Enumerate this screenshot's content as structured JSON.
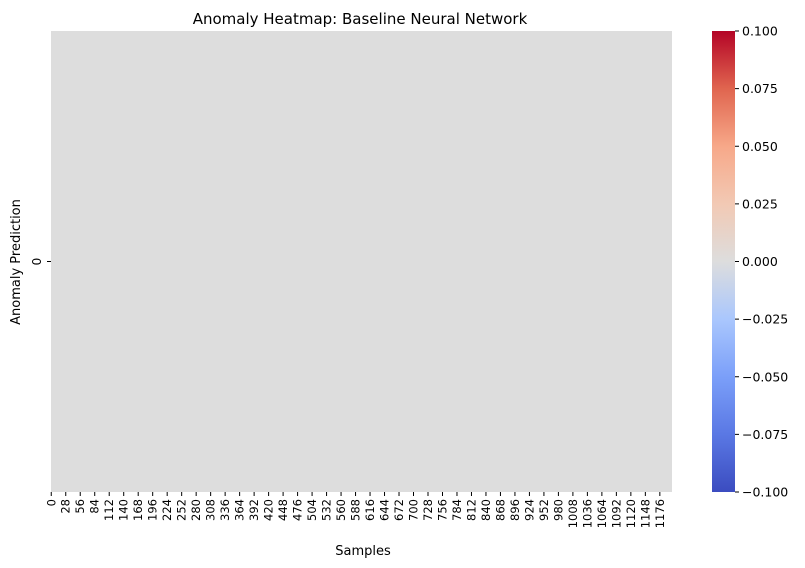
{
  "chart_data": {
    "type": "heatmap",
    "title": "Anomaly Heatmap: Baseline Neural Network",
    "xlabel": "Samples",
    "ylabel": "Anomaly Prediction",
    "x_tick_labels": [
      "0",
      "28",
      "56",
      "84",
      "112",
      "140",
      "168",
      "196",
      "224",
      "252",
      "280",
      "308",
      "336",
      "364",
      "392",
      "420",
      "448",
      "476",
      "504",
      "532",
      "560",
      "588",
      "616",
      "644",
      "672",
      "700",
      "728",
      "756",
      "784",
      "812",
      "840",
      "868",
      "896",
      "924",
      "952",
      "980",
      "1008",
      "1036",
      "1064",
      "1092",
      "1120",
      "1148",
      "1176"
    ],
    "y_tick_labels": [
      "0"
    ],
    "rows": 1,
    "columns": 1200,
    "cell_value": 0.0,
    "colormap": "coolwarm",
    "colorbar": {
      "vmin": -0.1,
      "vmax": 0.1,
      "tick_labels": [
        "0.100",
        "0.075",
        "0.050",
        "0.025",
        "0.000",
        "−0.025",
        "−0.050",
        "−0.075",
        "−0.100"
      ],
      "tick_values": [
        0.1,
        0.075,
        0.05,
        0.025,
        0.0,
        -0.025,
        -0.05,
        -0.075,
        -0.1
      ]
    },
    "colors": {
      "cell": "#dddddd",
      "cmap_low": "#3b4cc0",
      "cmap_mid": "#dddddd",
      "cmap_high": "#b40426"
    },
    "grid": false,
    "legend": "colorbar-right"
  }
}
